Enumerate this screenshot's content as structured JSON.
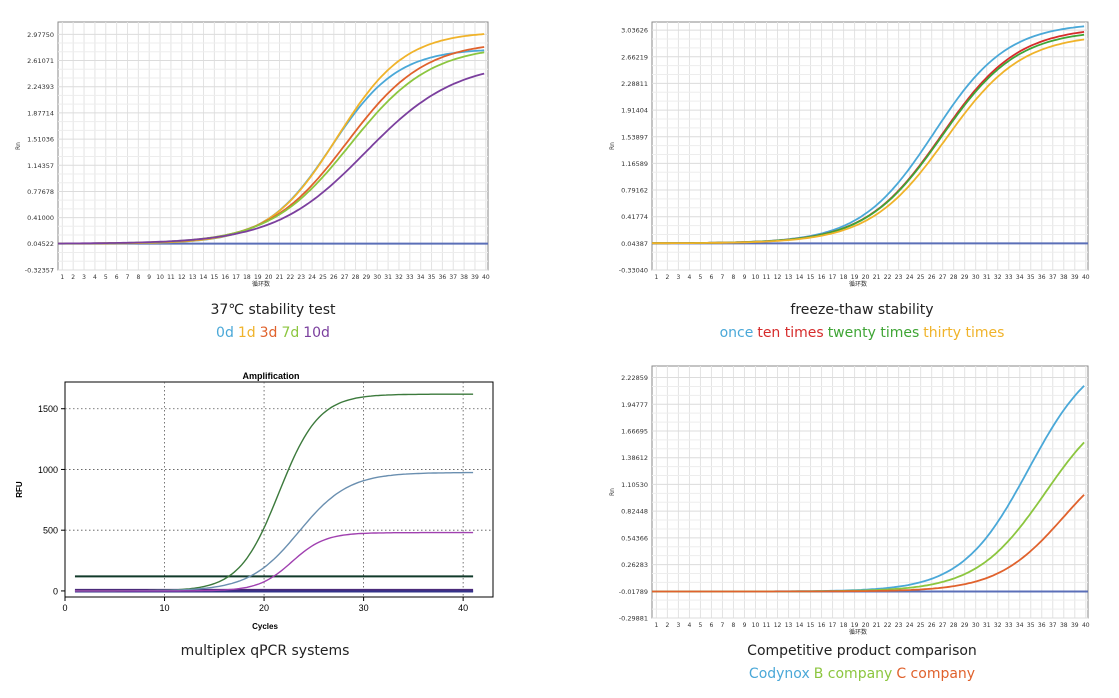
{
  "panels": [
    {
      "caption": "37℃ stability test",
      "legend": [
        {
          "label": "0d",
          "color": "#4aa8d8"
        },
        {
          "label": "1d",
          "color": "#f0b32a"
        },
        {
          "label": "3d",
          "color": "#e0622d"
        },
        {
          "label": "7d",
          "color": "#8cc63f"
        },
        {
          "label": "10d",
          "color": "#7b3f9e"
        }
      ]
    },
    {
      "caption": "freeze-thaw stability",
      "legend": [
        {
          "label": "once",
          "color": "#4aa8d8"
        },
        {
          "label": "ten times",
          "color": "#d62c2c"
        },
        {
          "label": "twenty times",
          "color": "#3fa535"
        },
        {
          "label": "thirty times",
          "color": "#f0b32a"
        }
      ]
    },
    {
      "caption": "multiplex qPCR systems",
      "legend": []
    },
    {
      "caption": "Competitive product comparison",
      "legend": [
        {
          "label": "Codynox",
          "color": "#4aa8d8"
        },
        {
          "label": "B company",
          "color": "#8cc63f"
        },
        {
          "label": "C company",
          "color": "#e0622d"
        }
      ]
    }
  ],
  "chart_data": [
    {
      "type": "line",
      "title": "",
      "xlabel": "循环数",
      "ylabel": "Rn",
      "x_ticks": [
        1,
        2,
        3,
        4,
        5,
        6,
        7,
        8,
        9,
        10,
        11,
        12,
        13,
        14,
        15,
        16,
        17,
        18,
        19,
        20,
        21,
        22,
        23,
        24,
        25,
        26,
        27,
        28,
        29,
        30,
        31,
        32,
        33,
        34,
        35,
        36,
        37,
        38,
        39,
        40
      ],
      "y_tick_labels": [
        "-0.32357",
        "0.04522",
        "0.41000",
        "0.77678",
        "1.14357",
        "1.51036",
        "1.87714",
        "2.24393",
        "2.61071",
        "2.97750"
      ],
      "ylim": [
        -0.32357,
        3.15
      ],
      "grid": true,
      "series": [
        {
          "name": "0d",
          "color": "#4aa8d8",
          "ct": 25.8,
          "plateau": 2.78,
          "k": 0.33
        },
        {
          "name": "1d",
          "color": "#f0b32a",
          "ct": 26.3,
          "plateau": 3.02,
          "k": 0.32
        },
        {
          "name": "3d",
          "color": "#e0622d",
          "ct": 27.2,
          "plateau": 2.88,
          "k": 0.28
        },
        {
          "name": "7d",
          "color": "#8cc63f",
          "ct": 27.5,
          "plateau": 2.82,
          "k": 0.27
        },
        {
          "name": "10d",
          "color": "#7b3f9e",
          "ct": 28.9,
          "plateau": 2.6,
          "k": 0.24
        }
      ],
      "baselines": [
        {
          "color": "#5b6fb8",
          "y": 0.045
        }
      ]
    },
    {
      "type": "line",
      "title": "",
      "xlabel": "循环数",
      "ylabel": "Rn",
      "x_ticks": [
        1,
        2,
        3,
        4,
        5,
        6,
        7,
        8,
        9,
        10,
        11,
        12,
        13,
        14,
        15,
        16,
        17,
        18,
        19,
        20,
        21,
        22,
        23,
        24,
        25,
        26,
        27,
        28,
        29,
        30,
        31,
        32,
        33,
        34,
        35,
        36,
        37,
        38,
        39,
        40
      ],
      "y_tick_labels": [
        "-0.33040",
        "0.04387",
        "0.41774",
        "0.79162",
        "1.16589",
        "1.53897",
        "1.91404",
        "2.28811",
        "2.66219",
        "3.03626"
      ],
      "ylim": [
        -0.3304,
        3.15
      ],
      "grid": true,
      "series": [
        {
          "name": "once",
          "color": "#4aa8d8",
          "ct": 26.2,
          "plateau": 3.14,
          "k": 0.3
        },
        {
          "name": "ten times",
          "color": "#d62c2c",
          "ct": 26.9,
          "plateau": 3.08,
          "k": 0.29
        },
        {
          "name": "twenty times",
          "color": "#3fa535",
          "ct": 26.9,
          "plateau": 3.04,
          "k": 0.29
        },
        {
          "name": "thirty times",
          "color": "#f0b32a",
          "ct": 27.3,
          "plateau": 2.98,
          "k": 0.29
        }
      ],
      "baselines": [
        {
          "color": "#5b6fb8",
          "y": 0.044
        }
      ]
    },
    {
      "type": "line",
      "title": "Amplification",
      "xlabel": "Cycles",
      "ylabel": "RFU",
      "x_ticks": [
        0,
        10,
        20,
        30,
        40
      ],
      "y_ticks": [
        0,
        500,
        1000,
        1500
      ],
      "xlim": [
        0,
        43
      ],
      "ylim": [
        -50,
        1720
      ],
      "grid": true,
      "series": [
        {
          "color": "#3c7a3c",
          "ct": 21.5,
          "plateau": 1620,
          "k": 0.5,
          "x0": 1,
          "x1": 41
        },
        {
          "color": "#6a8fb0",
          "ct": 23.5,
          "plateau": 975,
          "k": 0.4,
          "x0": 1,
          "x1": 41
        },
        {
          "color": "#a040b0",
          "ct": 22.8,
          "plateau": 480,
          "k": 0.6,
          "x0": 1,
          "x1": 41
        }
      ],
      "baselines": [
        {
          "color": "#123a2a",
          "y": 120,
          "width": 2
        },
        {
          "color": "#4b2a7a",
          "y": 5,
          "width": 3
        },
        {
          "color": "#33338a",
          "y": -5,
          "width": 2
        }
      ]
    },
    {
      "type": "line",
      "title": "",
      "xlabel": "循环数",
      "ylabel": "Rn",
      "x_ticks": [
        1,
        2,
        3,
        4,
        5,
        6,
        7,
        8,
        9,
        10,
        11,
        12,
        13,
        14,
        15,
        16,
        17,
        18,
        19,
        20,
        21,
        22,
        23,
        24,
        25,
        26,
        27,
        28,
        29,
        30,
        31,
        32,
        33,
        34,
        35,
        36,
        37,
        38,
        39,
        40
      ],
      "y_tick_labels": [
        "-0.29881",
        "-0.01789",
        "0.26283",
        "0.54366",
        "0.82448",
        "1.10530",
        "1.38612",
        "1.66695",
        "1.94777",
        "2.22859"
      ],
      "ylim": [
        -0.29881,
        2.35
      ],
      "grid": true,
      "series": [
        {
          "name": "Codynox",
          "color": "#4aa8d8",
          "ct": 34.8,
          "plateau": 2.55,
          "k": 0.33
        },
        {
          "name": "B company",
          "color": "#8cc63f",
          "ct": 36.3,
          "plateau": 2.05,
          "k": 0.32
        },
        {
          "name": "C company",
          "color": "#e0622d",
          "ct": 38.0,
          "plateau": 1.55,
          "k": 0.33
        }
      ],
      "baselines": [
        {
          "color": "#5b6fb8",
          "y": -0.02
        }
      ]
    }
  ]
}
